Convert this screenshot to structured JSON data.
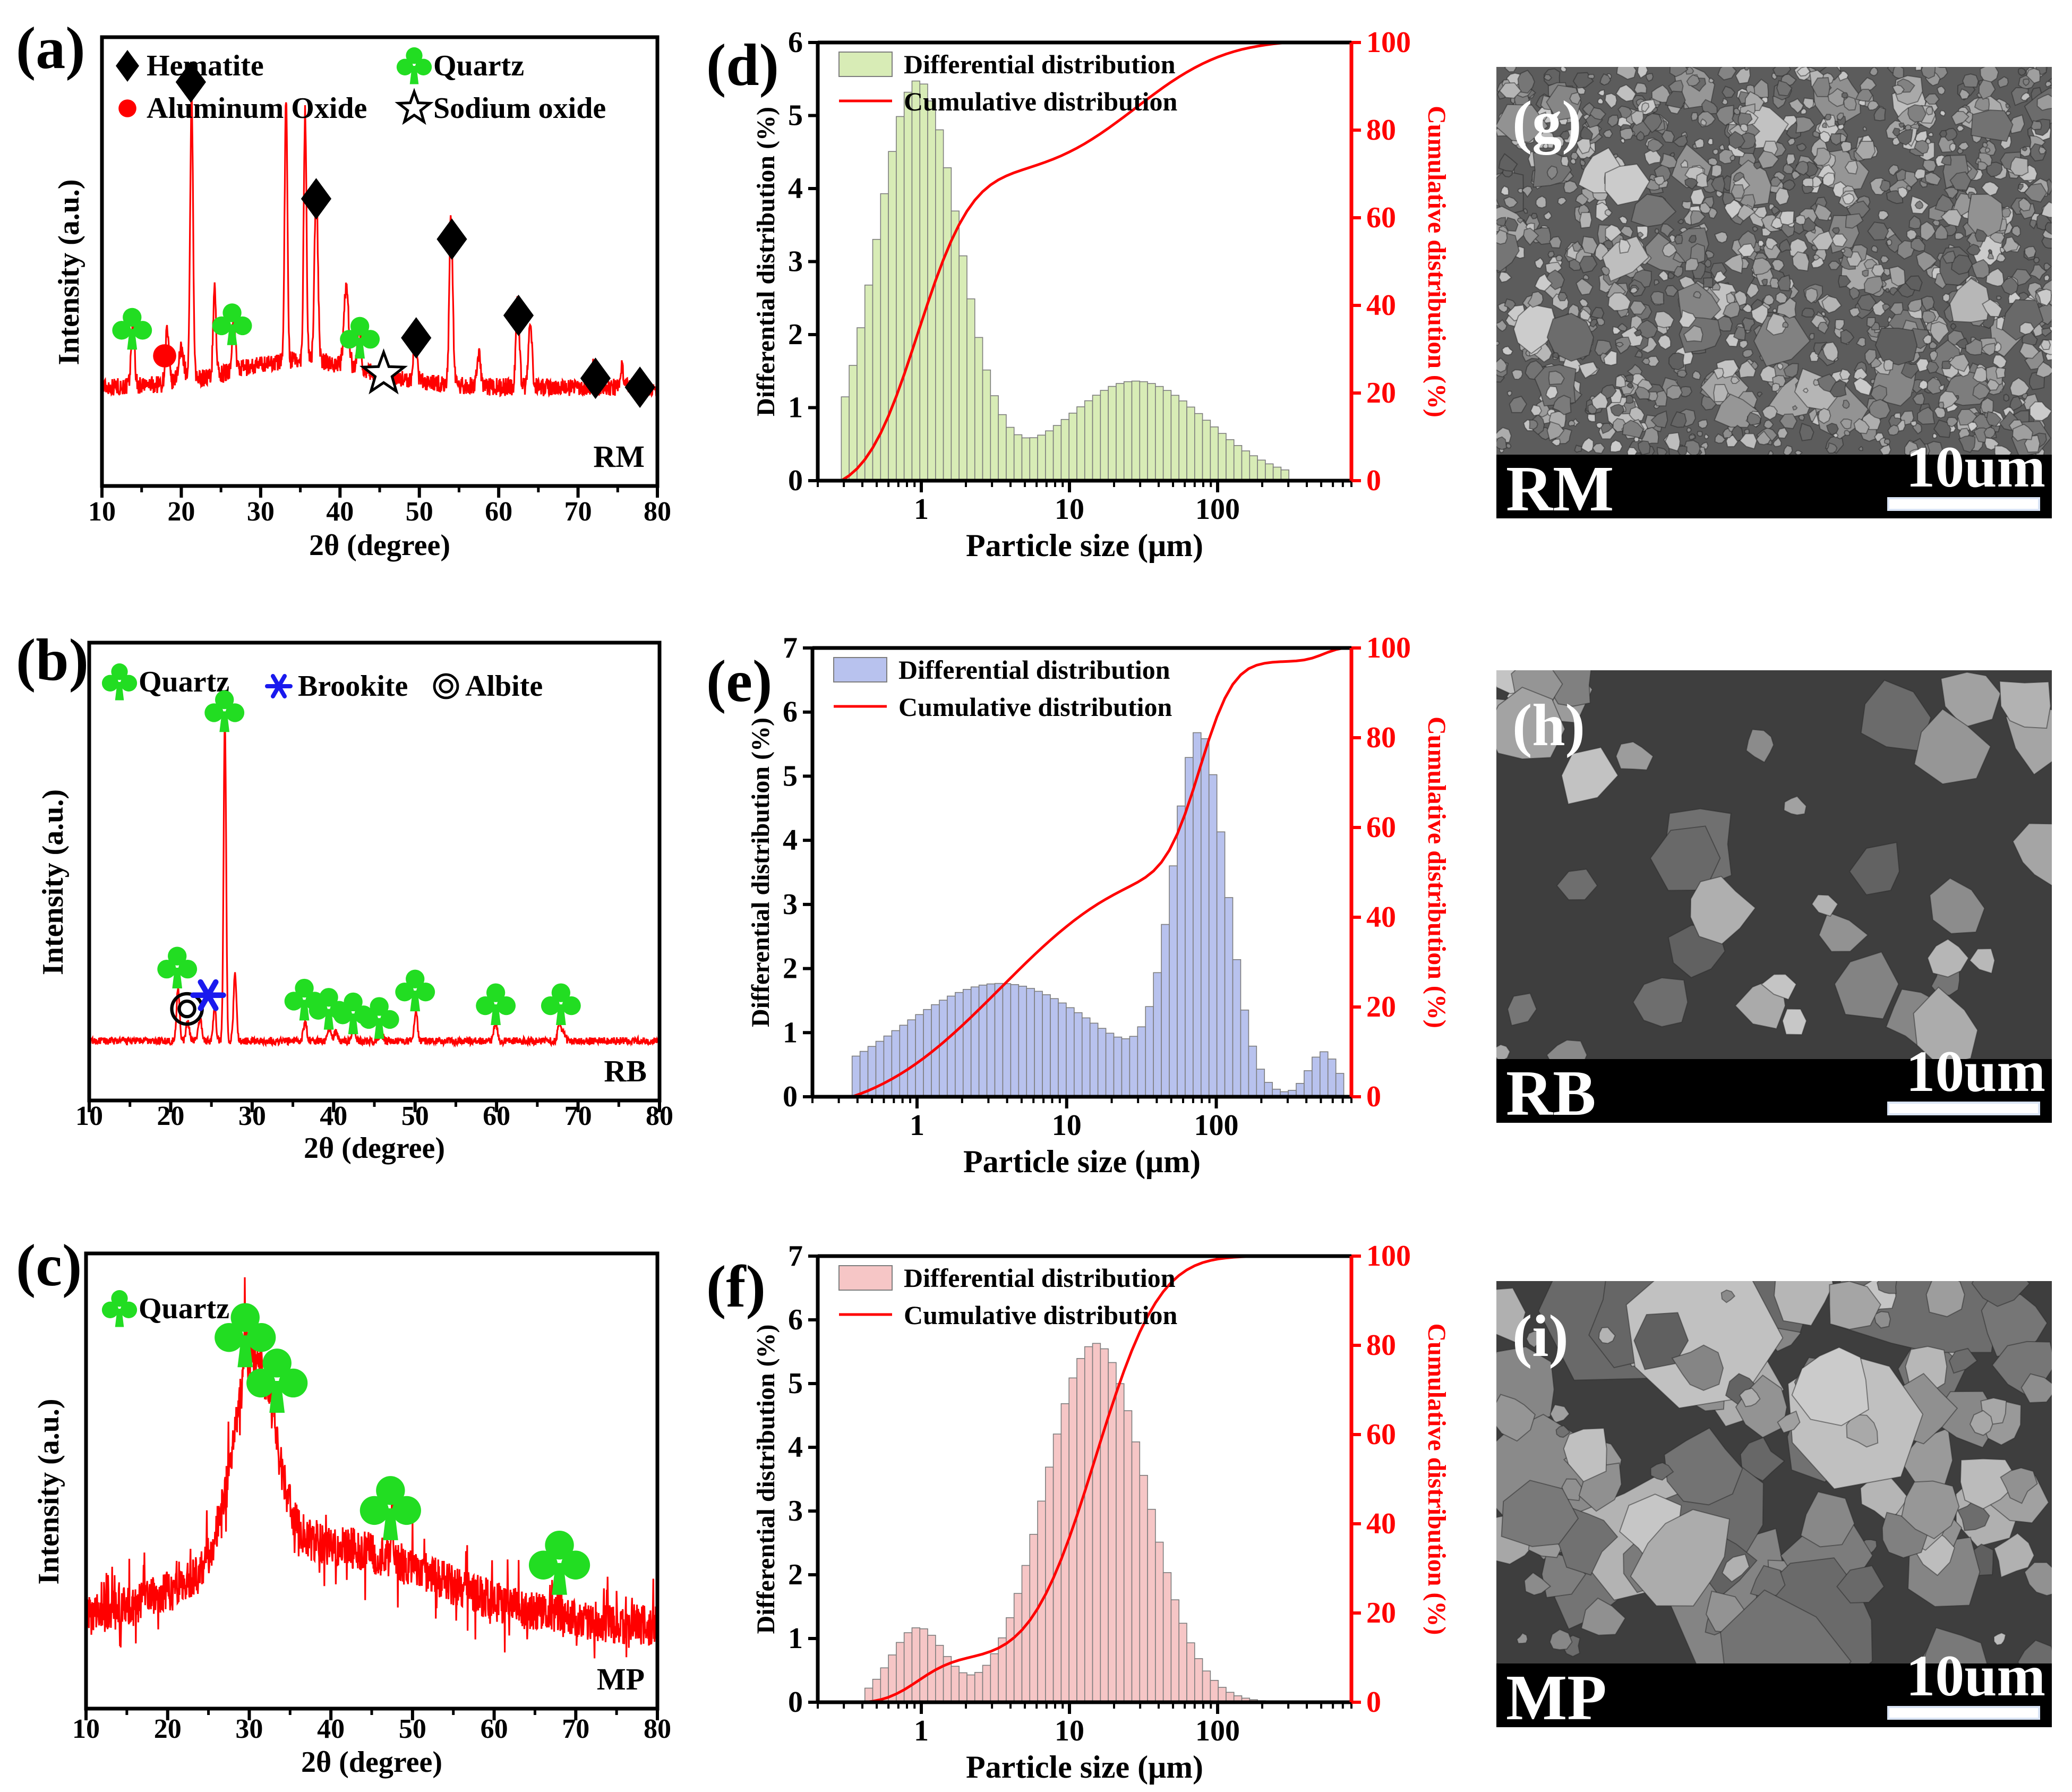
{
  "colors": {
    "xrd_line": "#ff0000",
    "quartz": "#22dd22",
    "brookite": "#1a1aee",
    "hematite": "#000000",
    "aluminum_oxide": "#ff0000",
    "cumulative": "#ff0000",
    "rm_bar_fill": "#d8ecb6",
    "rb_bar_fill": "#b8c2ee",
    "mp_bar_fill": "#f6c6c6"
  },
  "chart_data": [
    {
      "id": "a",
      "type": "line",
      "panel_label": "(a)",
      "sample_label": "RM",
      "xlabel": "2θ (degree)",
      "ylabel": "Intensity (a.u.)",
      "xlim": [
        10,
        80
      ],
      "ylim": [
        0,
        100
      ],
      "xticks": [
        "10",
        "20",
        "30",
        "40",
        "50",
        "60",
        "70",
        "80"
      ],
      "legend": [
        {
          "symbol": "diamond",
          "label": "Hematite"
        },
        {
          "symbol": "club",
          "label": "Quartz"
        },
        {
          "symbol": "circle",
          "label": "Aluminum Oxide"
        },
        {
          "symbol": "star",
          "label": "Sodium oxide"
        }
      ],
      "baseline": 22,
      "peaks": [
        {
          "x": 13.9,
          "h": 14,
          "w": 0.3
        },
        {
          "x": 18.2,
          "h": 12,
          "w": 0.3
        },
        {
          "x": 20.0,
          "h": 7,
          "w": 0.5
        },
        {
          "x": 21.3,
          "h": 64,
          "w": 0.25
        },
        {
          "x": 24.2,
          "h": 20,
          "w": 0.25
        },
        {
          "x": 26.6,
          "h": 12,
          "w": 0.3
        },
        {
          "x": 33.2,
          "h": 58,
          "w": 0.25
        },
        {
          "x": 35.6,
          "h": 55,
          "w": 0.25
        },
        {
          "x": 37.0,
          "h": 40,
          "w": 0.3
        },
        {
          "x": 40.8,
          "h": 18,
          "w": 0.4
        },
        {
          "x": 42.4,
          "h": 11,
          "w": 0.3
        },
        {
          "x": 49.5,
          "h": 11,
          "w": 0.3
        },
        {
          "x": 54.0,
          "h": 38,
          "w": 0.3
        },
        {
          "x": 57.5,
          "h": 7,
          "w": 0.3
        },
        {
          "x": 62.4,
          "h": 20,
          "w": 0.3
        },
        {
          "x": 64.0,
          "h": 15,
          "w": 0.3
        },
        {
          "x": 72.0,
          "h": 6,
          "w": 0.3
        },
        {
          "x": 75.5,
          "h": 4,
          "w": 0.3
        }
      ],
      "markers": [
        {
          "type": "club",
          "x": 13.8,
          "y": 35
        },
        {
          "type": "circle",
          "x": 17.9,
          "y": 29
        },
        {
          "type": "diamond",
          "x": 21.2,
          "y": 90
        },
        {
          "type": "club",
          "x": 26.4,
          "y": 36
        },
        {
          "type": "diamond",
          "x": 37.0,
          "y": 64
        },
        {
          "type": "club",
          "x": 42.5,
          "y": 33
        },
        {
          "type": "star",
          "x": 45.5,
          "y": 25
        },
        {
          "type": "diamond",
          "x": 49.6,
          "y": 33
        },
        {
          "type": "diamond",
          "x": 54.1,
          "y": 55
        },
        {
          "type": "diamond",
          "x": 62.5,
          "y": 38
        },
        {
          "type": "diamond",
          "x": 72.2,
          "y": 24
        },
        {
          "type": "diamond",
          "x": 77.8,
          "y": 22
        }
      ]
    },
    {
      "id": "b",
      "type": "line",
      "panel_label": "(b)",
      "sample_label": "RB",
      "xlabel": "2θ (degree)",
      "ylabel": "Intensity (a.u.)",
      "xlim": [
        10,
        80
      ],
      "ylim": [
        0,
        100
      ],
      "xticks": [
        "10",
        "20",
        "30",
        "40",
        "50",
        "60",
        "70",
        "80"
      ],
      "legend": [
        {
          "symbol": "club",
          "label": "Quartz"
        },
        {
          "symbol": "asterisk",
          "label": "Brookite"
        },
        {
          "symbol": "target",
          "label": "Albite"
        }
      ],
      "baseline": 13,
      "peaks": [
        {
          "x": 20.9,
          "h": 12,
          "w": 0.25
        },
        {
          "x": 22.1,
          "h": 4,
          "w": 0.3
        },
        {
          "x": 23.6,
          "h": 5,
          "w": 0.3
        },
        {
          "x": 25.4,
          "h": 7,
          "w": 0.25
        },
        {
          "x": 26.65,
          "h": 70,
          "w": 0.22
        },
        {
          "x": 27.9,
          "h": 15,
          "w": 0.25
        },
        {
          "x": 36.5,
          "h": 4,
          "w": 0.3
        },
        {
          "x": 39.5,
          "h": 3,
          "w": 0.3
        },
        {
          "x": 40.3,
          "h": 2,
          "w": 0.3
        },
        {
          "x": 42.5,
          "h": 3,
          "w": 0.3
        },
        {
          "x": 45.8,
          "h": 2,
          "w": 0.3
        },
        {
          "x": 50.1,
          "h": 7,
          "w": 0.25
        },
        {
          "x": 59.9,
          "h": 4,
          "w": 0.3
        },
        {
          "x": 67.7,
          "h": 4,
          "w": 0.3
        },
        {
          "x": 68.2,
          "h": 2,
          "w": 0.3
        }
      ],
      "markers": [
        {
          "type": "club",
          "x": 20.8,
          "y": 29
        },
        {
          "type": "target",
          "x": 22.0,
          "y": 20
        },
        {
          "type": "asterisk",
          "x": 24.6,
          "y": 23
        },
        {
          "type": "club",
          "x": 26.6,
          "y": 85
        },
        {
          "type": "club",
          "x": 36.4,
          "y": 22
        },
        {
          "type": "club",
          "x": 39.4,
          "y": 20
        },
        {
          "type": "club",
          "x": 42.4,
          "y": 19
        },
        {
          "type": "club",
          "x": 45.6,
          "y": 18
        },
        {
          "type": "club",
          "x": 50.0,
          "y": 24
        },
        {
          "type": "club",
          "x": 59.9,
          "y": 21
        },
        {
          "type": "club",
          "x": 67.9,
          "y": 21
        }
      ]
    },
    {
      "id": "c",
      "type": "line",
      "panel_label": "(c)",
      "sample_label": "MP",
      "xlabel": "2θ (degree)",
      "ylabel": "Intensity (a.u.)",
      "xlim": [
        10,
        80
      ],
      "ylim": [
        0,
        100
      ],
      "xticks": [
        "10",
        "20",
        "30",
        "40",
        "50",
        "60",
        "70",
        "80"
      ],
      "legend": [
        {
          "symbol": "club",
          "label": "Quartz"
        }
      ],
      "baseline": 18,
      "hump": {
        "center": 30.5,
        "height": 44,
        "width": 3.6,
        "tail": 18,
        "tail_width": 20
      },
      "peaks": [
        {
          "x": 29.5,
          "h": 14,
          "w": 0.2
        },
        {
          "x": 33.0,
          "h": 8,
          "w": 0.2
        },
        {
          "x": 47.5,
          "h": 10,
          "w": 0.2
        },
        {
          "x": 68.0,
          "h": 3,
          "w": 0.2
        }
      ],
      "markers": [
        {
          "type": "club",
          "x": 29.5,
          "y": 82
        },
        {
          "type": "club",
          "x": 33.4,
          "y": 72
        },
        {
          "type": "club",
          "x": 47.3,
          "y": 44
        },
        {
          "type": "club",
          "x": 68.0,
          "y": 32
        }
      ]
    },
    {
      "id": "d",
      "type": "bar",
      "panel_label": "(d)",
      "xlabel": "Particle size (μm)",
      "ylabel": "Differential distribution (%)",
      "y2label": "Cumulative distribution (%)",
      "xlim": [
        0.2,
        800
      ],
      "x_tick_values": [
        1,
        10,
        100
      ],
      "x_tick_labels": [
        "1",
        "10",
        "100"
      ],
      "ylim": [
        0,
        6
      ],
      "yticks": [
        "0",
        "1",
        "2",
        "3",
        "4",
        "5",
        "6"
      ],
      "y2lim": [
        0,
        100
      ],
      "y2ticks": [
        "0",
        "20",
        "40",
        "60",
        "80",
        "100"
      ],
      "legend": [
        "Differential distribution",
        "Cumulative distribution"
      ],
      "fill_key": "rm_bar_fill",
      "x_range": [
        0.28,
        316
      ],
      "components": [
        {
          "w": 0.7,
          "mu": 0.95,
          "s": 0.64
        },
        {
          "w": 0.3,
          "mu": 28,
          "s": 1.1
        }
      ]
    },
    {
      "id": "e",
      "type": "bar",
      "panel_label": "(e)",
      "xlabel": "Particle size (μm)",
      "ylabel": "Differential distribution (%)",
      "y2label": "Cumulative distribution (%)",
      "xlim": [
        0.2,
        800
      ],
      "x_tick_values": [
        1,
        10,
        100
      ],
      "x_tick_labels": [
        "1",
        "10",
        "100"
      ],
      "ylim": [
        0,
        7
      ],
      "yticks": [
        "0",
        "1",
        "2",
        "3",
        "4",
        "5",
        "6",
        "7"
      ],
      "y2lim": [
        0,
        100
      ],
      "y2ticks": [
        "0",
        "20",
        "40",
        "60",
        "80",
        "100"
      ],
      "legend": [
        "Differential distribution",
        "Cumulative distribution"
      ],
      "fill_key": "rb_bar_fill",
      "x_range": [
        0.38,
        720
      ],
      "components": [
        {
          "w": 0.54,
          "mu": 3.6,
          "s": 1.55
        },
        {
          "w": 0.43,
          "mu": 78,
          "s": 0.4
        },
        {
          "w": 0.03,
          "mu": 520,
          "s": 0.22
        }
      ]
    },
    {
      "id": "f",
      "type": "bar",
      "panel_label": "(f)",
      "xlabel": "Particle size (μm)",
      "ylabel": "Differential distribution (%)",
      "y2label": "Cumulative distribution (%)",
      "xlim": [
        0.2,
        800
      ],
      "x_tick_values": [
        1,
        10,
        100
      ],
      "x_tick_labels": [
        "1",
        "10",
        "100"
      ],
      "ylim": [
        0,
        7
      ],
      "yticks": [
        "0",
        "1",
        "2",
        "3",
        "4",
        "5",
        "6",
        "7"
      ],
      "y2lim": [
        0,
        100
      ],
      "y2ticks": [
        "0",
        "20",
        "40",
        "60",
        "80",
        "100"
      ],
      "legend": [
        "Differential distribution",
        "Cumulative distribution"
      ],
      "fill_key": "mp_bar_fill",
      "x_range": [
        0.4,
        300
      ],
      "components": [
        {
          "w": 0.1,
          "mu": 0.95,
          "s": 0.42
        },
        {
          "w": 0.9,
          "mu": 15,
          "s": 0.78
        }
      ]
    }
  ],
  "sem_images": [
    {
      "id": "g",
      "panel_label": "(g)",
      "sample_label": "RM",
      "scale_label": "10um"
    },
    {
      "id": "h",
      "panel_label": "(h)",
      "sample_label": "RB",
      "scale_label": "10um"
    },
    {
      "id": "i",
      "panel_label": "(i)",
      "sample_label": "MP",
      "scale_label": "10um"
    }
  ]
}
